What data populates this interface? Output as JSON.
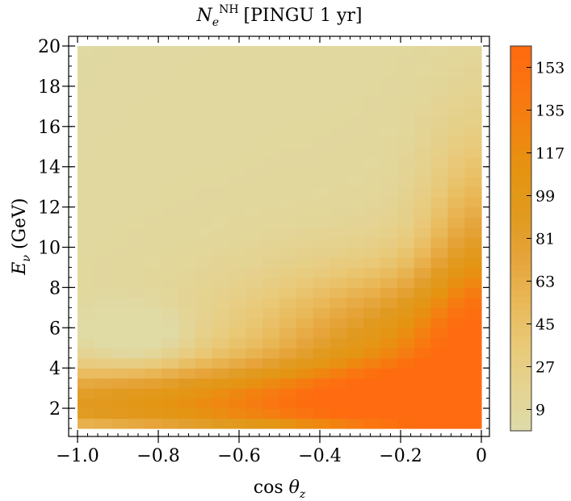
{
  "chart_data": {
    "type": "heatmap",
    "title": {
      "symbol": "N",
      "subscript": "e",
      "superscript": "NH",
      "suffix": "[PINGU 1 yr]"
    },
    "xlabel": {
      "prefix": "cos ",
      "symbol": "θ",
      "subscript": "z"
    },
    "ylabel": {
      "symbol": "E",
      "subscript": "ν",
      "suffix": " (GeV)"
    },
    "xlim": [
      -1.0,
      0.0
    ],
    "ylim": [
      1,
      20
    ],
    "x_ticks": [
      -1.0,
      -0.8,
      -0.6,
      -0.4,
      -0.2,
      0.0
    ],
    "x_tick_labels": [
      "−1.0",
      "−0.8",
      "−0.6",
      "−0.4",
      "−0.2",
      "0"
    ],
    "y_ticks": [
      2,
      4,
      6,
      8,
      10,
      12,
      14,
      16,
      18,
      20
    ],
    "y_tick_labels": [
      "2",
      "4",
      "6",
      "8",
      "10",
      "12",
      "14",
      "16",
      "18",
      "20"
    ],
    "grid": false,
    "x_bins": 24,
    "y_bins": 38,
    "colorbar": {
      "range": [
        0,
        162
      ],
      "ticks": [
        9,
        27,
        45,
        63,
        81,
        99,
        117,
        135,
        153
      ],
      "tick_labels": [
        "9",
        "27",
        "45",
        "63",
        "81",
        "99",
        "117",
        "135",
        "153"
      ],
      "colors": [
        "#dedcaa",
        "#e4d392",
        "#e9c978",
        "#e9b858",
        "#e6a53c",
        "#e19a20",
        "#e49512",
        "#f08510",
        "#fa7410",
        "#ff6a10"
      ]
    }
  }
}
